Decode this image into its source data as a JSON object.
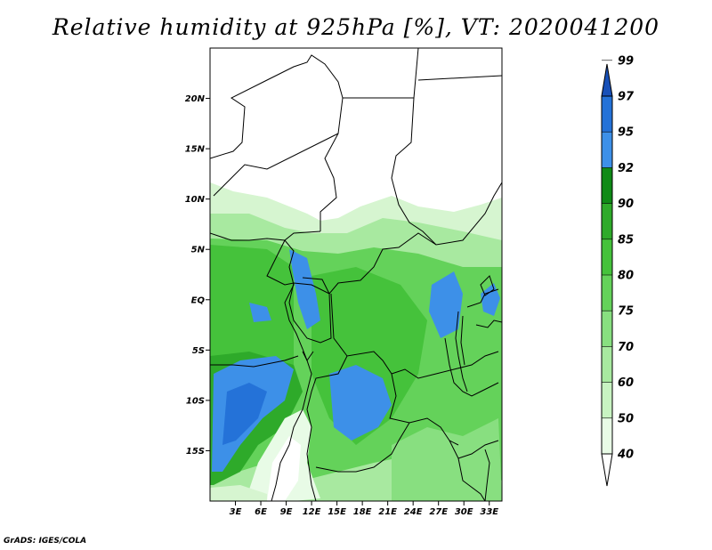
{
  "title": "Relative humidity at 925hPa [%], VT: 2020041200",
  "credit": "GrADS: IGES/COLA",
  "map": {
    "lon_range": [
      0,
      34.5
    ],
    "lat_range": [
      -20,
      25
    ],
    "lat_ticks": [
      {
        "value": 20,
        "label": "20N"
      },
      {
        "value": 15,
        "label": "15N"
      },
      {
        "value": 10,
        "label": "10N"
      },
      {
        "value": 5,
        "label": "5N"
      },
      {
        "value": 0,
        "label": "EQ"
      },
      {
        "value": -5,
        "label": "5S"
      },
      {
        "value": -10,
        "label": "10S"
      },
      {
        "value": -15,
        "label": "15S"
      }
    ],
    "lon_ticks": [
      {
        "value": 3,
        "label": "3E"
      },
      {
        "value": 6,
        "label": "6E"
      },
      {
        "value": 9,
        "label": "9E"
      },
      {
        "value": 12,
        "label": "12E"
      },
      {
        "value": 15,
        "label": "15E"
      },
      {
        "value": 18,
        "label": "18E"
      },
      {
        "value": 21,
        "label": "21E"
      },
      {
        "value": 24,
        "label": "24E"
      },
      {
        "value": 27,
        "label": "27E"
      },
      {
        "value": 30,
        "label": "30E"
      },
      {
        "value": 33,
        "label": "33E"
      }
    ]
  },
  "colorbar": {
    "levels": [
      "40",
      "50",
      "60",
      "70",
      "75",
      "80",
      "85",
      "90",
      "92",
      "95",
      "97",
      "99"
    ],
    "colors": [
      "#ffffff",
      "#e8fbe6",
      "#c8f3c2",
      "#a8e9a0",
      "#88df80",
      "#64d25a",
      "#45c23b",
      "#2eaa2a",
      "#0f8a16",
      "#3d90e8",
      "#2472d8",
      "#1850b8"
    ]
  }
}
